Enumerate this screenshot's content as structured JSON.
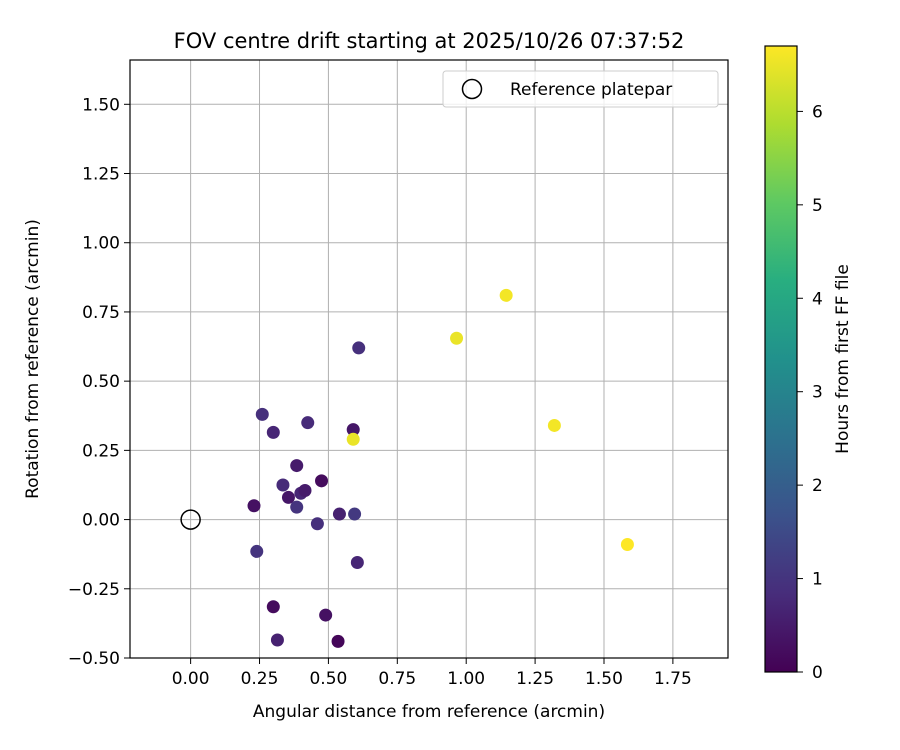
{
  "chart_data": {
    "type": "scatter",
    "title": "FOV centre drift starting at 2025/10/26 07:37:52",
    "xlabel": "Angular distance from reference (arcmin)",
    "ylabel": "Rotation from reference (arcmin)",
    "xlim": [
      -0.22,
      1.95
    ],
    "ylim": [
      -0.5,
      1.66
    ],
    "xticks": [
      "0.00",
      "0.25",
      "0.50",
      "0.75",
      "1.00",
      "1.25",
      "1.50",
      "1.75"
    ],
    "yticks": [
      "−0.50",
      "−0.25",
      "0.00",
      "0.25",
      "0.50",
      "0.75",
      "1.00",
      "1.25",
      "1.50"
    ],
    "grid": true,
    "legend": {
      "placement": "top-right",
      "entries": [
        "Reference platepar"
      ]
    },
    "reference_point": {
      "x": 0.0,
      "y": 0.0,
      "marker": "open-circle"
    },
    "colorbar": {
      "label": "Hours from first FF file",
      "colormap": "viridis",
      "range": [
        0,
        6.7
      ],
      "ticks": [
        "0",
        "1",
        "2",
        "3",
        "4",
        "5",
        "6"
      ]
    },
    "points": [
      {
        "x": 0.23,
        "y": 0.05,
        "hours": 0.3
      },
      {
        "x": 0.24,
        "y": -0.115,
        "hours": 1.0
      },
      {
        "x": 0.26,
        "y": 0.38,
        "hours": 0.9
      },
      {
        "x": 0.3,
        "y": 0.315,
        "hours": 0.7
      },
      {
        "x": 0.3,
        "y": -0.315,
        "hours": 0.2
      },
      {
        "x": 0.315,
        "y": -0.435,
        "hours": 0.6
      },
      {
        "x": 0.335,
        "y": 0.125,
        "hours": 0.8
      },
      {
        "x": 0.355,
        "y": 0.08,
        "hours": 0.4
      },
      {
        "x": 0.385,
        "y": 0.195,
        "hours": 0.5
      },
      {
        "x": 0.385,
        "y": 0.045,
        "hours": 1.0
      },
      {
        "x": 0.4,
        "y": 0.095,
        "hours": 0.7
      },
      {
        "x": 0.415,
        "y": 0.105,
        "hours": 0.5
      },
      {
        "x": 0.425,
        "y": 0.35,
        "hours": 0.8
      },
      {
        "x": 0.46,
        "y": -0.015,
        "hours": 0.9
      },
      {
        "x": 0.475,
        "y": 0.14,
        "hours": 0.2
      },
      {
        "x": 0.49,
        "y": -0.345,
        "hours": 0.3
      },
      {
        "x": 0.535,
        "y": -0.44,
        "hours": 0.1
      },
      {
        "x": 0.54,
        "y": 0.02,
        "hours": 0.6
      },
      {
        "x": 0.59,
        "y": 0.325,
        "hours": 0.4
      },
      {
        "x": 0.595,
        "y": 0.02,
        "hours": 1.1
      },
      {
        "x": 0.605,
        "y": -0.155,
        "hours": 0.7
      },
      {
        "x": 0.61,
        "y": 0.62,
        "hours": 0.9
      },
      {
        "x": 0.59,
        "y": 0.29,
        "hours": 6.5
      },
      {
        "x": 0.965,
        "y": 0.655,
        "hours": 6.5
      },
      {
        "x": 1.145,
        "y": 0.81,
        "hours": 6.6
      },
      {
        "x": 1.32,
        "y": 0.34,
        "hours": 6.6
      },
      {
        "x": 1.585,
        "y": -0.09,
        "hours": 6.7
      }
    ]
  }
}
